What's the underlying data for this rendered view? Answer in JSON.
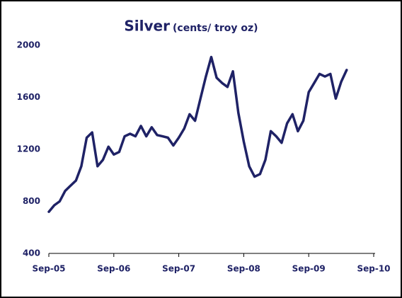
{
  "chart_data": {
    "type": "line",
    "title": "Silver",
    "subtitle": "(cents/ troy oz)",
    "categories": [
      "Sep-05",
      null,
      null,
      null,
      null,
      null,
      null,
      null,
      null,
      null,
      null,
      null,
      "Sep-06",
      null,
      null,
      null,
      null,
      null,
      null,
      null,
      null,
      null,
      null,
      null,
      "Sep-07",
      null,
      null,
      null,
      null,
      null,
      null,
      null,
      null,
      null,
      null,
      null,
      "Sep-08",
      null,
      null,
      null,
      null,
      null,
      null,
      null,
      null,
      null,
      null,
      null,
      "Sep-09",
      null,
      null,
      null,
      null,
      null,
      null,
      null,
      null,
      null,
      null,
      null,
      "Sep-10"
    ],
    "values": [
      720,
      770,
      800,
      880,
      920,
      960,
      1070,
      1290,
      1330,
      1070,
      1120,
      1220,
      1160,
      1180,
      1300,
      1320,
      1300,
      1380,
      1300,
      1370,
      1310,
      1300,
      1290,
      1230,
      1290,
      1360,
      1470,
      1420,
      1590,
      1760,
      1910,
      1750,
      1710,
      1680,
      1800,
      1480,
      1260,
      1070,
      990,
      1010,
      1120,
      1340,
      1300,
      1250,
      1400,
      1470,
      1340,
      1420,
      1640,
      1710,
      1780,
      1760,
      1780,
      1590,
      1720,
      1810,
      null,
      null,
      null,
      null,
      null
    ],
    "color": "#1f2266",
    "ylim": [
      400,
      2000
    ],
    "yticks": [
      400,
      800,
      1200,
      1600,
      2000
    ],
    "grid": false
  }
}
